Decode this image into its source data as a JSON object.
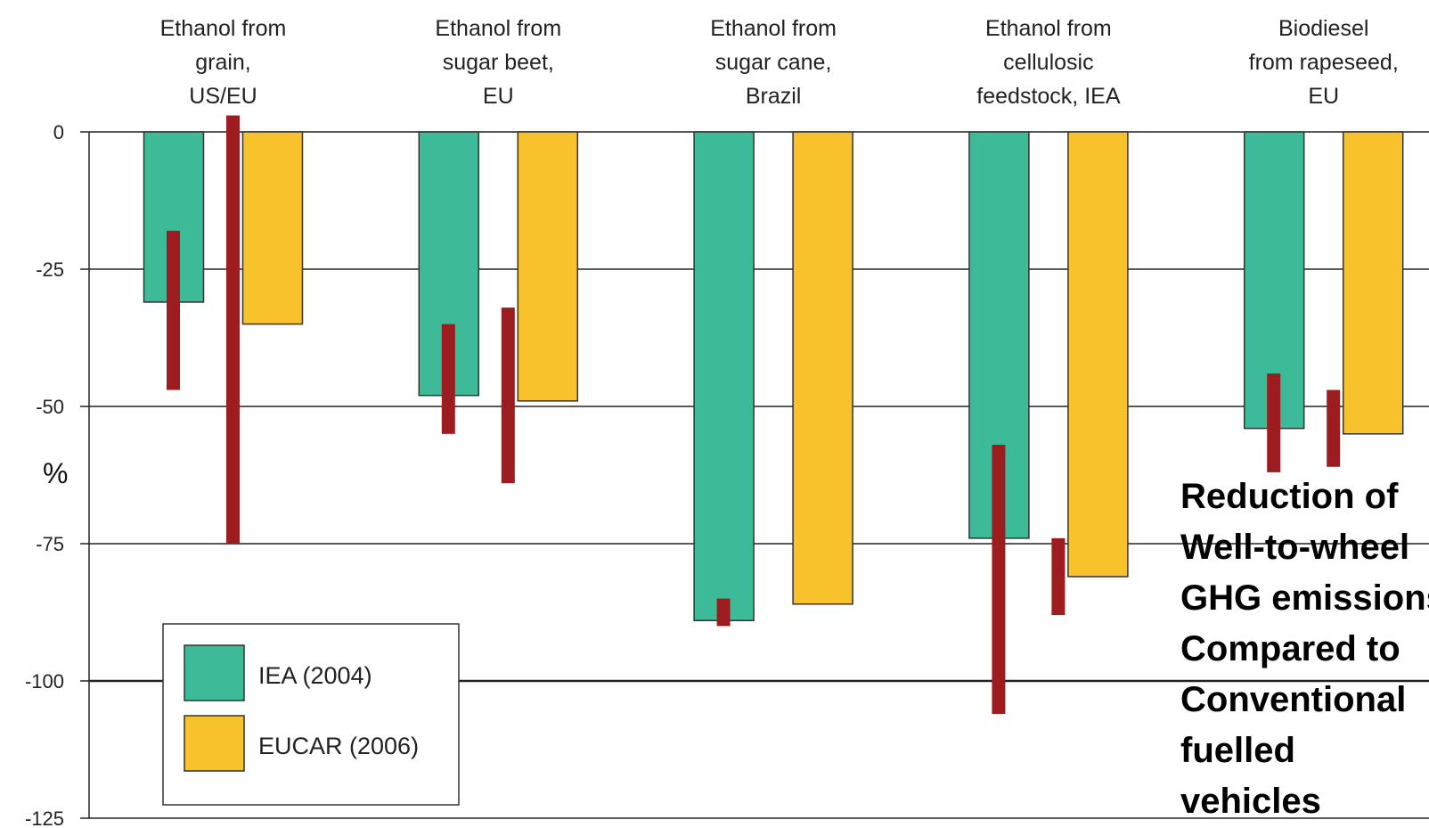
{
  "chart_data": {
    "type": "bar",
    "ylabel": "%",
    "ylim": [
      -125,
      0
    ],
    "yticks": [
      0,
      -25,
      -50,
      -75,
      -100,
      -125
    ],
    "grid": true,
    "categories": [
      [
        "Ethanol from",
        "grain,",
        "US/EU"
      ],
      [
        "Ethanol from",
        "sugar beet,",
        "EU"
      ],
      [
        "Ethanol from",
        "sugar cane,",
        "Brazil"
      ],
      [
        "Ethanol from",
        "cellulosic",
        "feedstock, IEA"
      ],
      [
        "Biodiesel",
        "from rapeseed,",
        "EU"
      ]
    ],
    "series": [
      {
        "name": "IEA (2004)",
        "color": "#3dbb98",
        "values": [
          -31,
          -48,
          -89,
          -74,
          -54
        ],
        "ranges": [
          [
            -18,
            -47
          ],
          [
            -35,
            -55
          ],
          [
            -85,
            -90
          ],
          [
            -57,
            -106
          ],
          [
            -44,
            -62
          ]
        ]
      },
      {
        "name": "EUCAR (2006)",
        "color": "#f7c22b",
        "values": [
          -35,
          -49,
          -86,
          -81,
          -55
        ],
        "ranges": [
          [
            3,
            -75
          ],
          [
            -32,
            -64
          ],
          null,
          [
            -74,
            -88
          ],
          [
            -47,
            -61
          ]
        ]
      }
    ],
    "range_color": "#9c1c1f",
    "legend_position": "bottom-left",
    "annotation": [
      "Reduction of",
      "Well-to-wheel",
      "GHG emissions",
      "Compared to",
      "Conventional",
      "fuelled",
      "vehicles"
    ]
  }
}
